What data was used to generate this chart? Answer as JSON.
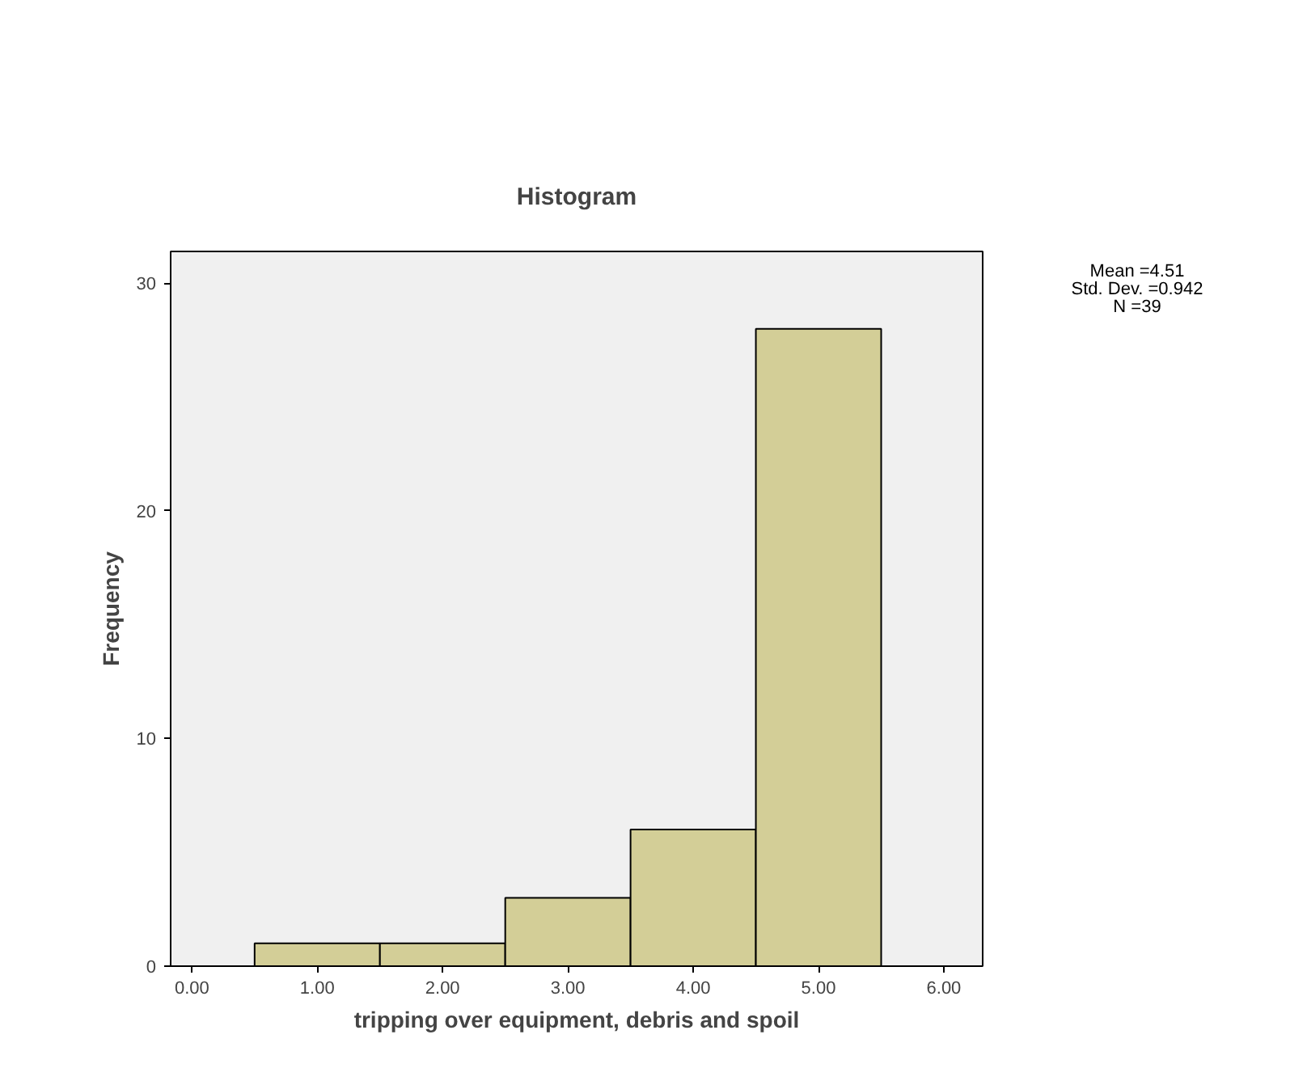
{
  "chart_data": {
    "type": "histogram",
    "title": "Histogram",
    "xlabel": "tripping over equipment, debris and spoil",
    "ylabel": "Frequency",
    "bins": [
      0.5,
      1.5,
      2.5,
      3.5,
      4.5,
      5.5
    ],
    "values": [
      1,
      1,
      3,
      6,
      28
    ],
    "color": "#d3ce97",
    "xlim": [
      -0.17,
      6.31
    ],
    "ylim": [
      0,
      31.4
    ],
    "xticks": [
      {
        "value": 0,
        "label": "0.00"
      },
      {
        "value": 1,
        "label": "1.00"
      },
      {
        "value": 2,
        "label": "2.00"
      },
      {
        "value": 3,
        "label": "3.00"
      },
      {
        "value": 4,
        "label": "4.00"
      },
      {
        "value": 5,
        "label": "5.00"
      },
      {
        "value": 6,
        "label": "6.00"
      }
    ],
    "yticks": [
      0,
      10,
      20,
      30
    ],
    "grid": false,
    "annotations": [
      "Mean =4.51",
      "Std. Dev. =0.942",
      "N =39"
    ]
  }
}
